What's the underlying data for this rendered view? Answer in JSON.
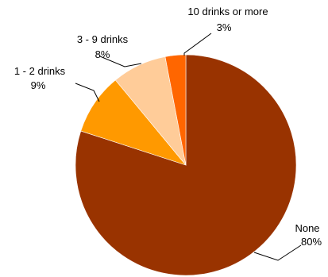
{
  "chart_data": {
    "type": "pie",
    "title": "",
    "legend": "none",
    "slices": [
      {
        "label": "None",
        "value": 80,
        "value_label": "80%",
        "color": "#993300"
      },
      {
        "label": "1 - 2 drinks",
        "value": 9,
        "value_label": "9%",
        "color": "#ff9900"
      },
      {
        "label": "3 - 9 drinks",
        "value": 8,
        "value_label": "8%",
        "color": "#ffcc99"
      },
      {
        "label": "10 drinks or more",
        "value": 3,
        "value_label": "3%",
        "color": "#ff6600"
      }
    ]
  }
}
